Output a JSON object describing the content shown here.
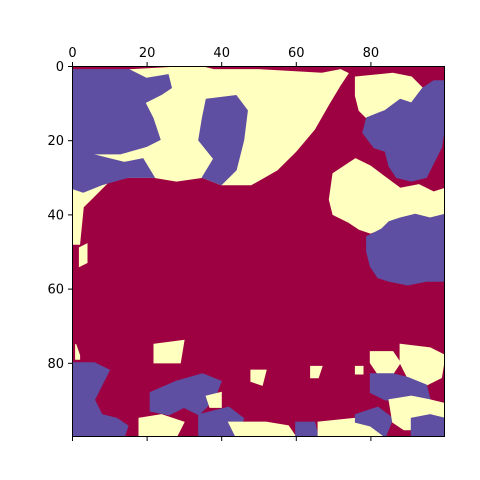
{
  "chart_data": {
    "type": "heatmap",
    "title": "",
    "xlabel": "",
    "ylabel": "",
    "x_axis_position": "top",
    "xlim": [
      0,
      100
    ],
    "ylim": [
      100,
      0
    ],
    "x_ticks": [
      0,
      20,
      40,
      60,
      80
    ],
    "y_ticks": [
      0,
      20,
      40,
      60,
      80
    ],
    "grid": false,
    "legend": "none",
    "colormap": "Spectral",
    "levels": [
      {
        "value": 0,
        "color": "#9e0142",
        "name": "level-0"
      },
      {
        "value": 1,
        "color": "#ffffbf",
        "name": "level-1"
      },
      {
        "value": 2,
        "color": "#5e4fa2",
        "name": "level-2"
      }
    ],
    "regions": [
      {
        "level": 2,
        "poly": [
          [
            2,
            1
          ],
          [
            16,
            1
          ],
          [
            20,
            3
          ],
          [
            26,
            2
          ],
          [
            27,
            6
          ],
          [
            24,
            8
          ],
          [
            20,
            10
          ],
          [
            22,
            14
          ],
          [
            24,
            20
          ],
          [
            20,
            22
          ],
          [
            13,
            24
          ],
          [
            6,
            24
          ],
          [
            4,
            27
          ],
          [
            0,
            27
          ],
          [
            0,
            1
          ]
        ]
      },
      {
        "level": 1,
        "poly": [
          [
            16,
            1
          ],
          [
            34,
            0
          ],
          [
            38,
            1
          ],
          [
            50,
            1
          ],
          [
            67,
            2
          ],
          [
            72,
            1
          ],
          [
            74,
            2
          ],
          [
            72,
            5
          ],
          [
            69,
            10
          ],
          [
            65,
            17
          ],
          [
            60,
            23
          ],
          [
            55,
            28
          ],
          [
            48,
            32
          ],
          [
            40,
            32
          ],
          [
            35,
            30
          ],
          [
            28,
            31
          ],
          [
            22,
            30
          ],
          [
            15,
            30
          ],
          [
            10,
            31
          ],
          [
            5,
            36
          ],
          [
            3,
            38
          ],
          [
            2,
            48
          ],
          [
            0,
            48
          ],
          [
            0,
            27
          ],
          [
            4,
            27
          ],
          [
            6,
            24
          ],
          [
            13,
            24
          ],
          [
            20,
            22
          ],
          [
            24,
            20
          ],
          [
            22,
            14
          ],
          [
            20,
            10
          ],
          [
            24,
            8
          ],
          [
            27,
            6
          ],
          [
            26,
            2
          ],
          [
            20,
            3
          ]
        ]
      },
      {
        "level": 2,
        "poly": [
          [
            2,
            25
          ],
          [
            6,
            24
          ],
          [
            14,
            26
          ],
          [
            19,
            25
          ],
          [
            22,
            30
          ],
          [
            15,
            30
          ],
          [
            8,
            32
          ],
          [
            3,
            34
          ],
          [
            0,
            33
          ],
          [
            0,
            27
          ]
        ]
      },
      {
        "level": 2,
        "poly": [
          [
            36,
            9
          ],
          [
            44,
            8
          ],
          [
            47,
            12
          ],
          [
            46,
            20
          ],
          [
            44,
            28
          ],
          [
            40,
            32
          ],
          [
            35,
            30
          ],
          [
            38,
            25
          ],
          [
            34,
            20
          ],
          [
            35,
            14
          ]
        ]
      },
      {
        "level": 1,
        "poly": [
          [
            76,
            3
          ],
          [
            86,
            2
          ],
          [
            91,
            3
          ],
          [
            94,
            6
          ],
          [
            91,
            10
          ],
          [
            88,
            9
          ],
          [
            84,
            12
          ],
          [
            79,
            14
          ],
          [
            77,
            12
          ],
          [
            76,
            8
          ]
        ]
      },
      {
        "level": 2,
        "poly": [
          [
            79,
            14
          ],
          [
            84,
            12
          ],
          [
            88,
            9
          ],
          [
            91,
            10
          ],
          [
            94,
            6
          ],
          [
            97,
            4
          ],
          [
            100,
            4
          ],
          [
            100,
            16
          ],
          [
            99,
            22
          ],
          [
            97,
            26
          ],
          [
            95,
            30
          ],
          [
            91,
            31
          ],
          [
            87,
            30
          ],
          [
            85,
            27
          ],
          [
            84,
            23
          ],
          [
            81,
            22
          ],
          [
            78,
            18
          ]
        ]
      },
      {
        "level": 1,
        "poly": [
          [
            70,
            29
          ],
          [
            76,
            25
          ],
          [
            80,
            27
          ],
          [
            84,
            30
          ],
          [
            88,
            33
          ],
          [
            93,
            32
          ],
          [
            97,
            34
          ],
          [
            100,
            33
          ],
          [
            100,
            40
          ],
          [
            96,
            41
          ],
          [
            92,
            40
          ],
          [
            88,
            41
          ],
          [
            85,
            42
          ],
          [
            83,
            44
          ],
          [
            80,
            45
          ],
          [
            77,
            44
          ],
          [
            74,
            42
          ],
          [
            70,
            40
          ],
          [
            69,
            36
          ]
        ]
      },
      {
        "level": 2,
        "poly": [
          [
            83,
            44
          ],
          [
            85,
            42
          ],
          [
            88,
            41
          ],
          [
            92,
            40
          ],
          [
            96,
            41
          ],
          [
            100,
            40
          ],
          [
            100,
            58
          ],
          [
            95,
            58
          ],
          [
            90,
            59
          ],
          [
            85,
            58
          ],
          [
            82,
            57
          ],
          [
            80,
            54
          ],
          [
            79,
            50
          ],
          [
            79,
            46
          ]
        ]
      },
      {
        "level": 1,
        "poly": [
          [
            1,
            75
          ],
          [
            2,
            78
          ],
          [
            2,
            79
          ],
          [
            1,
            79
          ]
        ]
      },
      {
        "level": 2,
        "poly": [
          [
            0,
            80
          ],
          [
            6,
            80
          ],
          [
            10,
            82
          ],
          [
            8,
            86
          ],
          [
            6,
            90
          ],
          [
            8,
            94
          ],
          [
            12,
            95
          ],
          [
            15,
            97
          ],
          [
            14,
            100
          ],
          [
            0,
            100
          ]
        ]
      },
      {
        "level": 1,
        "poly": [
          [
            22,
            75
          ],
          [
            30,
            74
          ],
          [
            29,
            80
          ],
          [
            22,
            80
          ]
        ]
      },
      {
        "level": 2,
        "poly": [
          [
            21,
            88
          ],
          [
            28,
            85
          ],
          [
            35,
            83
          ],
          [
            40,
            85
          ],
          [
            38,
            90
          ],
          [
            34,
            94
          ],
          [
            30,
            92
          ],
          [
            26,
            94
          ],
          [
            21,
            93
          ]
        ]
      },
      {
        "level": 1,
        "poly": [
          [
            18,
            95
          ],
          [
            24,
            94
          ],
          [
            30,
            96
          ],
          [
            28,
            100
          ],
          [
            18,
            100
          ]
        ]
      },
      {
        "level": 2,
        "poly": [
          [
            34,
            94
          ],
          [
            42,
            92
          ],
          [
            46,
            95
          ],
          [
            44,
            100
          ],
          [
            34,
            100
          ]
        ]
      },
      {
        "level": 1,
        "poly": [
          [
            42,
            96
          ],
          [
            52,
            96
          ],
          [
            58,
            97
          ],
          [
            60,
            100
          ],
          [
            44,
            100
          ]
        ]
      },
      {
        "level": 2,
        "poly": [
          [
            60,
            96
          ],
          [
            65,
            96
          ],
          [
            66,
            100
          ],
          [
            60,
            100
          ]
        ]
      },
      {
        "level": 1,
        "poly": [
          [
            66,
            96
          ],
          [
            76,
            95
          ],
          [
            80,
            97
          ],
          [
            84,
            100
          ],
          [
            66,
            100
          ]
        ]
      },
      {
        "level": 2,
        "poly": [
          [
            76,
            94
          ],
          [
            82,
            92
          ],
          [
            86,
            95
          ],
          [
            84,
            100
          ],
          [
            80,
            97
          ],
          [
            76,
            96
          ]
        ]
      },
      {
        "level": 1,
        "poly": [
          [
            80,
            77
          ],
          [
            86,
            77
          ],
          [
            88,
            80
          ],
          [
            86,
            83
          ],
          [
            82,
            83
          ],
          [
            80,
            80
          ]
        ]
      },
      {
        "level": 1,
        "poly": [
          [
            88,
            75
          ],
          [
            96,
            76
          ],
          [
            100,
            78
          ],
          [
            99,
            84
          ],
          [
            95,
            86
          ],
          [
            90,
            84
          ],
          [
            88,
            80
          ]
        ]
      },
      {
        "level": 2,
        "poly": [
          [
            80,
            83
          ],
          [
            86,
            83
          ],
          [
            90,
            84
          ],
          [
            95,
            86
          ],
          [
            96,
            90
          ],
          [
            92,
            92
          ],
          [
            88,
            90
          ],
          [
            84,
            90
          ],
          [
            80,
            88
          ]
        ]
      },
      {
        "level": 1,
        "poly": [
          [
            85,
            90
          ],
          [
            91,
            89
          ],
          [
            96,
            90
          ],
          [
            100,
            91
          ],
          [
            100,
            97
          ],
          [
            95,
            98
          ],
          [
            89,
            98
          ],
          [
            86,
            96
          ]
        ]
      },
      {
        "level": 2,
        "poly": [
          [
            91,
            95
          ],
          [
            96,
            94
          ],
          [
            100,
            95
          ],
          [
            100,
            100
          ],
          [
            91,
            100
          ]
        ]
      },
      {
        "level": 1,
        "poly": [
          [
            48,
            82
          ],
          [
            52,
            82
          ],
          [
            51,
            86
          ],
          [
            48,
            85
          ]
        ]
      },
      {
        "level": 1,
        "poly": [
          [
            36,
            89
          ],
          [
            40,
            88
          ],
          [
            40,
            92
          ],
          [
            37,
            92
          ]
        ]
      },
      {
        "level": 1,
        "poly": [
          [
            64,
            81
          ],
          [
            67,
            81
          ],
          [
            66,
            84
          ],
          [
            64,
            84
          ]
        ]
      },
      {
        "level": 1,
        "poly": [
          [
            76,
            81
          ],
          [
            78,
            81
          ],
          [
            78,
            83
          ],
          [
            76,
            83
          ]
        ]
      },
      {
        "level": 1,
        "poly": [
          [
            2,
            49
          ],
          [
            4,
            48
          ],
          [
            4,
            53
          ],
          [
            2,
            54
          ]
        ]
      }
    ]
  }
}
